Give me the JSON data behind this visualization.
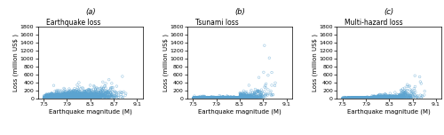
{
  "panels": [
    {
      "label": "(a)",
      "title": "Earthquake loss"
    },
    {
      "label": "(b)",
      "title": "Tsunami loss"
    },
    {
      "label": "(c)",
      "title": "Multi-hazard loss"
    }
  ],
  "xlabel": "Earthquake magnitude (M)",
  "ylabel": "Loss (million US$ )",
  "xlim": [
    7.4,
    9.2
  ],
  "ylim": [
    0,
    1800
  ],
  "xticks": [
    7.5,
    7.9,
    8.3,
    8.7,
    9.1
  ],
  "yticks": [
    0,
    200,
    400,
    600,
    800,
    1000,
    1200,
    1400,
    1600,
    1800
  ],
  "dot_color": "#5ba3d0",
  "n_points": 4000,
  "seed": 42,
  "scatter_size": 3.5,
  "scatter_lw": 0.35,
  "scatter_alpha": 0.7,
  "title_fontsize": 5.5,
  "label_fontsize": 6,
  "tick_fontsize": 4.5,
  "axis_label_fontsize": 5
}
